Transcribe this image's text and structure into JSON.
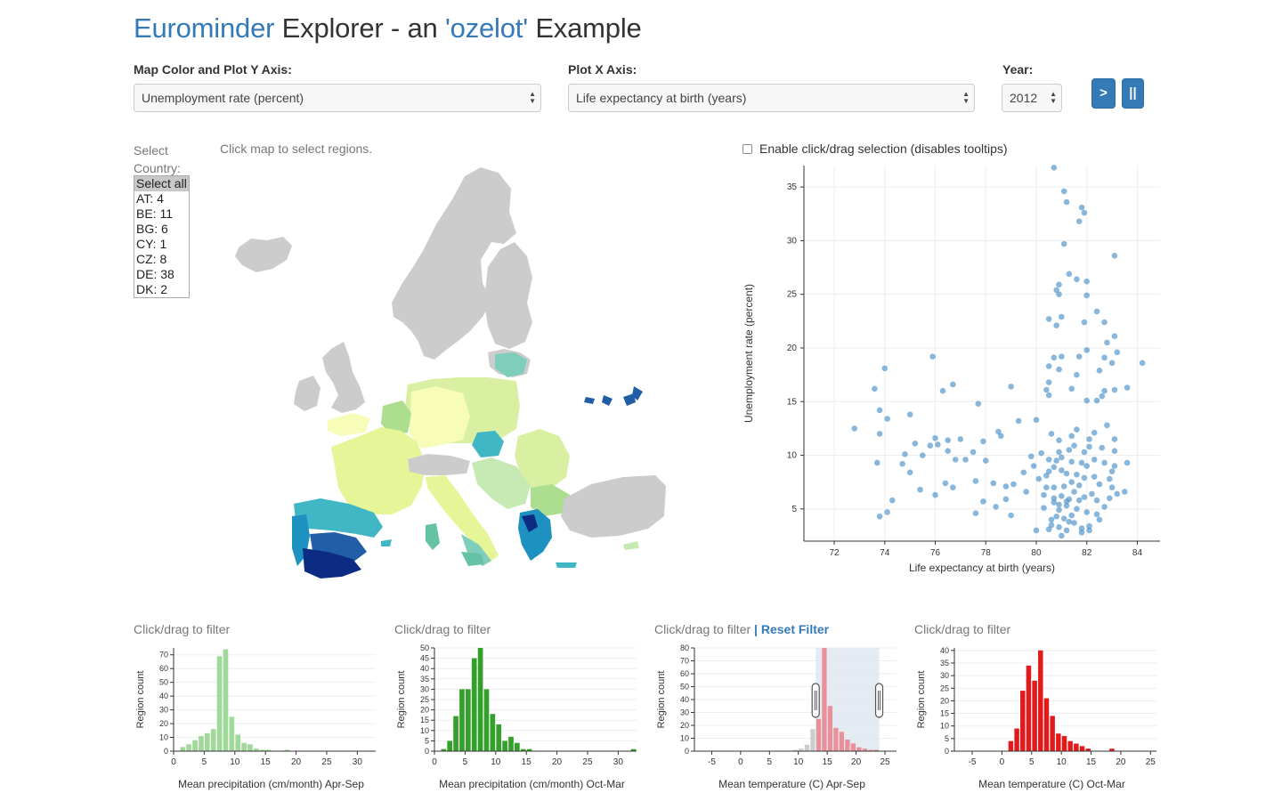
{
  "header": {
    "title_part1": "Eurominder",
    "title_part2": " Explorer - an ",
    "title_part3": "'ozelot'",
    "title_part4": " Example"
  },
  "controls": {
    "y_axis_label": "Map Color and Plot Y Axis:",
    "y_axis_value": "Unemployment rate (percent)",
    "x_axis_label": "Plot X Axis:",
    "x_axis_value": "Life expectancy at birth (years)",
    "year_label": "Year:",
    "year_value": "2012",
    "play_label": ">",
    "pause_label": "||"
  },
  "country_selector": {
    "label": "Select Country:",
    "options": [
      "Select all",
      "AT: 4",
      "BE: 11",
      "BG: 6",
      "CY: 1",
      "CZ: 8",
      "DE: 38",
      "DK: 2"
    ],
    "selected": "Select all"
  },
  "map": {
    "hint": "Click map to select regions."
  },
  "scatter": {
    "enable_selection_label": "Enable click/drag selection (disables tooltips)",
    "enable_selection_checked": false
  },
  "histograms": {
    "filter_label": "Click/drag to filter",
    "separator": " | ",
    "reset_label": "Reset Filter"
  },
  "chart_data": [
    {
      "type": "scatter",
      "xlabel": "Life expectancy at birth (years)",
      "ylabel": "Unemployment rate (percent)",
      "xlim": [
        70.8,
        84.9
      ],
      "ylim": [
        2,
        37
      ],
      "xticks": [
        72,
        74,
        76,
        78,
        80,
        82,
        84
      ],
      "yticks": [
        5,
        10,
        15,
        20,
        25,
        30,
        35
      ],
      "grid": true,
      "color": "#4a90c8",
      "points": [
        [
          80.7,
          36.8
        ],
        [
          81.1,
          34.6
        ],
        [
          81.2,
          33.6
        ],
        [
          81.8,
          33.1
        ],
        [
          81.9,
          32.6
        ],
        [
          81.7,
          31.8
        ],
        [
          81.1,
          29.7
        ],
        [
          83.1,
          28.6
        ],
        [
          81.3,
          26.9
        ],
        [
          81.6,
          26.4
        ],
        [
          82.0,
          26.2
        ],
        [
          80.9,
          25.9
        ],
        [
          80.8,
          25.4
        ],
        [
          80.9,
          25.0
        ],
        [
          82.0,
          24.9
        ],
        [
          82.4,
          23.4
        ],
        [
          81.0,
          22.9
        ],
        [
          80.5,
          22.7
        ],
        [
          81.9,
          22.4
        ],
        [
          82.7,
          22.4
        ],
        [
          80.8,
          22.1
        ],
        [
          83.1,
          21.1
        ],
        [
          82.8,
          20.5
        ],
        [
          84.2,
          18.6
        ],
        [
          83.0,
          18.6
        ],
        [
          82.0,
          19.8
        ],
        [
          81.7,
          19.2
        ],
        [
          81.0,
          19.2
        ],
        [
          80.7,
          19.1
        ],
        [
          83.2,
          19.6
        ],
        [
          82.7,
          19.1
        ],
        [
          80.5,
          18.3
        ],
        [
          80.9,
          18.0
        ],
        [
          82.5,
          17.9
        ],
        [
          75.9,
          19.2
        ],
        [
          74.0,
          18.1
        ],
        [
          81.6,
          17.5
        ],
        [
          80.5,
          16.8
        ],
        [
          83.6,
          16.3
        ],
        [
          83.1,
          16.1
        ],
        [
          82.7,
          16.0
        ],
        [
          81.4,
          16.2
        ],
        [
          80.4,
          16.1
        ],
        [
          79.0,
          16.4
        ],
        [
          76.3,
          16.0
        ],
        [
          76.7,
          16.6
        ],
        [
          73.6,
          16.2
        ],
        [
          82.0,
          15.1
        ],
        [
          82.4,
          15.1
        ],
        [
          82.6,
          15.5
        ],
        [
          80.5,
          15.6
        ],
        [
          77.7,
          14.8
        ],
        [
          73.8,
          14.2
        ],
        [
          74.1,
          13.4
        ],
        [
          75.0,
          13.8
        ],
        [
          79.3,
          13.2
        ],
        [
          80.0,
          13.3
        ],
        [
          72.8,
          12.5
        ],
        [
          73.8,
          12.0
        ],
        [
          76.0,
          11.6
        ],
        [
          76.5,
          11.4
        ],
        [
          77.0,
          11.5
        ],
        [
          75.8,
          10.9
        ],
        [
          75.2,
          11.1
        ],
        [
          77.9,
          11.3
        ],
        [
          78.6,
          11.8
        ],
        [
          81.4,
          11.8
        ],
        [
          80.9,
          11.4
        ],
        [
          82.1,
          11.5
        ],
        [
          83.1,
          11.5
        ],
        [
          82.6,
          10.7
        ],
        [
          81.9,
          10.3
        ],
        [
          81.3,
          10.5
        ],
        [
          80.2,
          10.2
        ],
        [
          80.5,
          9.6
        ],
        [
          79.8,
          9.9
        ],
        [
          80.8,
          9.5
        ],
        [
          81.4,
          9.4
        ],
        [
          81.8,
          9.3
        ],
        [
          82.0,
          9.0
        ],
        [
          82.3,
          9.6
        ],
        [
          82.7,
          9.3
        ],
        [
          83.1,
          9.0
        ],
        [
          83.6,
          9.3
        ],
        [
          80.7,
          8.9
        ],
        [
          81.0,
          8.6
        ],
        [
          81.2,
          8.3
        ],
        [
          81.6,
          8.2
        ],
        [
          81.9,
          7.9
        ],
        [
          82.3,
          8.0
        ],
        [
          82.9,
          7.8
        ],
        [
          83.0,
          8.5
        ],
        [
          80.4,
          8.1
        ],
        [
          80.1,
          7.8
        ],
        [
          79.5,
          8.4
        ],
        [
          79.1,
          7.3
        ],
        [
          78.8,
          7.1
        ],
        [
          78.3,
          7.4
        ],
        [
          77.6,
          7.6
        ],
        [
          76.7,
          7.0
        ],
        [
          76.4,
          7.4
        ],
        [
          75.0,
          8.4
        ],
        [
          74.7,
          9.2
        ],
        [
          74.8,
          10.1
        ],
        [
          73.7,
          9.3
        ],
        [
          75.4,
          6.8
        ],
        [
          76.0,
          6.3
        ],
        [
          74.3,
          5.8
        ],
        [
          74.1,
          4.7
        ],
        [
          73.8,
          4.3
        ],
        [
          80.7,
          7.0
        ],
        [
          81.0,
          6.2
        ],
        [
          81.3,
          5.9
        ],
        [
          80.7,
          5.6
        ],
        [
          80.3,
          5.1
        ],
        [
          80.9,
          4.9
        ],
        [
          81.2,
          5.3
        ],
        [
          81.6,
          5.0
        ],
        [
          82.0,
          4.7
        ],
        [
          82.4,
          4.5
        ],
        [
          82.7,
          5.2
        ],
        [
          80.8,
          4.3
        ],
        [
          81.1,
          4.1
        ],
        [
          81.5,
          3.7
        ],
        [
          80.6,
          3.5
        ],
        [
          81.8,
          3.2
        ],
        [
          80.0,
          3.0
        ],
        [
          80.5,
          3.1
        ],
        [
          81.2,
          3.0
        ],
        [
          81.8,
          2.8
        ],
        [
          82.1,
          3.0
        ],
        [
          81.0,
          2.5
        ],
        [
          82.4,
          5.8
        ],
        [
          82.9,
          6.0
        ],
        [
          83.2,
          6.4
        ],
        [
          83.5,
          6.6
        ],
        [
          82.2,
          6.4
        ],
        [
          81.5,
          6.6
        ],
        [
          81.1,
          7.1
        ],
        [
          80.3,
          6.3
        ],
        [
          79.6,
          6.6
        ],
        [
          78.8,
          5.9
        ],
        [
          78.4,
          5.2
        ],
        [
          77.9,
          5.7
        ],
        [
          77.6,
          4.6
        ],
        [
          79.0,
          4.4
        ],
        [
          81.4,
          7.5
        ],
        [
          81.7,
          7.2
        ],
        [
          82.5,
          7.3
        ],
        [
          83.0,
          7.0
        ],
        [
          80.5,
          8.5
        ],
        [
          79.9,
          9.0
        ],
        [
          81.0,
          9.8
        ],
        [
          78.0,
          9.5
        ],
        [
          77.5,
          10.3
        ],
        [
          77.2,
          9.6
        ],
        [
          76.8,
          9.6
        ],
        [
          76.5,
          10.4
        ],
        [
          75.5,
          10.0
        ],
        [
          76.1,
          11.0
        ],
        [
          78.5,
          12.2
        ],
        [
          80.6,
          12.0
        ],
        [
          81.6,
          12.4
        ],
        [
          82.3,
          12.1
        ],
        [
          82.8,
          12.8
        ],
        [
          83.1,
          10.4
        ],
        [
          81.5,
          10.9
        ],
        [
          80.9,
          10.3
        ],
        [
          82.1,
          10.8
        ],
        [
          82.5,
          4.0
        ],
        [
          81.4,
          4.4
        ],
        [
          80.9,
          5.4
        ],
        [
          81.2,
          5.7
        ],
        [
          81.7,
          5.8
        ],
        [
          80.7,
          6.0
        ],
        [
          80.4,
          7.0
        ],
        [
          81.9,
          6.1
        ],
        [
          81.3,
          3.8
        ],
        [
          82.1,
          3.4
        ],
        [
          80.9,
          3.3
        ],
        [
          80.6,
          4.0
        ]
      ]
    },
    {
      "type": "bar",
      "title": "Click/drag to filter",
      "xlabel": "Mean precipitation (cm/month) Apr-Sep",
      "ylabel": "Region count",
      "xlim": [
        0,
        33
      ],
      "ylim": [
        0,
        75
      ],
      "xticks": [
        0,
        5,
        10,
        15,
        20,
        25,
        30
      ],
      "yticks": [
        0,
        10,
        20,
        30,
        40,
        50,
        60,
        70
      ],
      "bin_width": 1,
      "bin_start": 0,
      "color": "#a1d99b",
      "values": [
        0,
        3,
        5,
        8,
        11,
        13,
        16,
        69,
        74,
        25,
        12,
        6,
        5,
        2,
        1,
        1,
        0,
        0,
        1,
        0,
        0,
        0,
        0,
        0,
        0,
        0,
        0,
        0,
        0,
        0,
        0,
        0,
        0
      ]
    },
    {
      "type": "bar",
      "title": "Click/drag to filter",
      "xlabel": "Mean precipitation (cm/month) Oct-Mar",
      "ylabel": "Region count",
      "xlim": [
        0,
        33
      ],
      "ylim": [
        0,
        50
      ],
      "xticks": [
        0,
        5,
        10,
        15,
        20,
        25,
        30
      ],
      "yticks": [
        0,
        5,
        10,
        15,
        20,
        25,
        30,
        35,
        40,
        45,
        50
      ],
      "bin_width": 1,
      "bin_start": 0,
      "color": "#33a02c",
      "values": [
        0,
        1,
        5,
        17,
        30,
        30,
        45,
        50,
        30,
        18,
        13,
        5,
        7,
        4,
        1,
        1,
        0,
        0,
        0,
        0,
        0,
        0,
        0,
        0,
        0,
        0,
        0,
        0,
        0,
        0,
        0,
        0,
        1
      ]
    },
    {
      "type": "bar",
      "title": "Click/drag to filter",
      "xlabel": "Mean temperature (C) Apr-Sep",
      "ylabel": "Region count",
      "xlim": [
        -8,
        27
      ],
      "ylim": [
        0,
        80
      ],
      "xticks": [
        -5,
        0,
        5,
        10,
        15,
        20,
        25
      ],
      "yticks": [
        0,
        10,
        20,
        30,
        40,
        50,
        60,
        70,
        80
      ],
      "bin_width": 1,
      "bin_start": 9,
      "selected_range": [
        13.0,
        24.0
      ],
      "color_selected": "#e9909a",
      "color_unselected": "#cccccc",
      "values": [
        1,
        2,
        5,
        17,
        25,
        80,
        35,
        18,
        15,
        9,
        6,
        3,
        2,
        1,
        1
      ]
    },
    {
      "type": "bar",
      "title": "Click/drag to filter",
      "xlabel": "Mean temperature (C) Oct-Mar",
      "ylabel": "Region count",
      "xlim": [
        -8,
        26
      ],
      "ylim": [
        0,
        41
      ],
      "xticks": [
        -5,
        0,
        5,
        10,
        15,
        20,
        25
      ],
      "yticks": [
        0,
        5,
        10,
        15,
        20,
        25,
        30,
        35,
        40
      ],
      "bin_width": 1,
      "bin_start": 0,
      "color": "#e31a1c",
      "values": [
        0,
        4,
        9,
        24,
        34,
        28,
        40,
        21,
        14,
        7,
        6,
        4,
        3,
        2,
        1,
        0,
        0,
        0,
        1,
        0,
        0
      ]
    }
  ]
}
